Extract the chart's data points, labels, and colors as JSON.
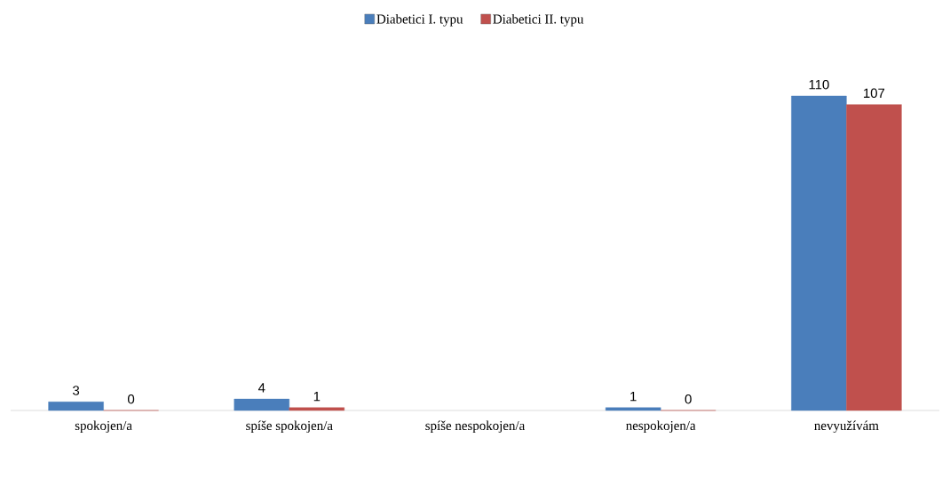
{
  "chart_data": {
    "type": "bar",
    "categories": [
      "spokojen/a",
      "spíše spokojen/a",
      "spíše nespokojen/a",
      "nespokojen/a",
      "nevyužívám"
    ],
    "series": [
      {
        "name": "Diabetici I. typu",
        "color": "#4a7ebb",
        "values": [
          3,
          4,
          null,
          1,
          110
        ]
      },
      {
        "name": "Diabetici II. typu",
        "color": "#c0504d",
        "values": [
          0,
          1,
          null,
          0,
          107
        ]
      }
    ],
    "data_labels": true,
    "legend": "top"
  }
}
